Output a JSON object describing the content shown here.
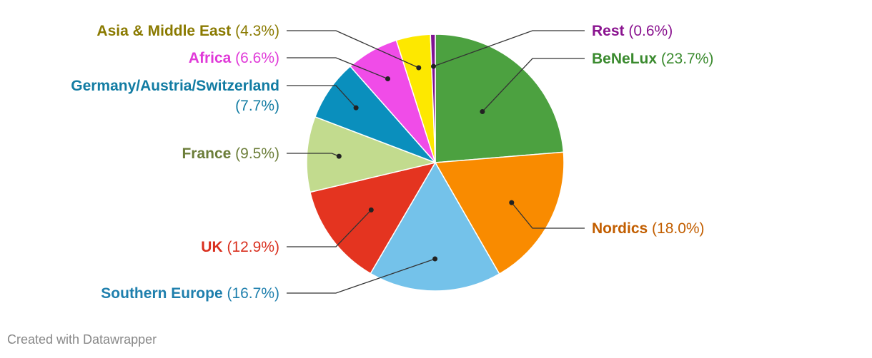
{
  "chart_data": {
    "type": "pie",
    "slices": [
      {
        "label": "BeNeLux",
        "value": 23.7,
        "display": "(23.7%)",
        "color": "#4ca140",
        "text_color": "#3a8a2e"
      },
      {
        "label": "Nordics",
        "value": 18.0,
        "display": "(18.0%)",
        "color": "#f98b00",
        "text_color": "#c25e00"
      },
      {
        "label": "Southern Europe",
        "value": 16.7,
        "display": "(16.7%)",
        "color": "#74c2ea",
        "text_color": "#1e7fad"
      },
      {
        "label": "UK",
        "value": 12.9,
        "display": "(12.9%)",
        "color": "#e43420",
        "text_color": "#d9301f"
      },
      {
        "label": "France",
        "value": 9.5,
        "display": "(9.5%)",
        "color": "#c2db8e",
        "text_color": "#6c7e3a"
      },
      {
        "label": "Germany/Austria/Switzerland",
        "value": 7.7,
        "display": "(7.7%)",
        "color": "#0a8fbd",
        "text_color": "#127ca3"
      },
      {
        "label": "Africa",
        "value": 6.6,
        "display": "(6.6%)",
        "color": "#f04ce8",
        "text_color": "#e03ad8"
      },
      {
        "label": "Asia & Middle East",
        "value": 4.3,
        "display": "(4.3%)",
        "color": "#fde800",
        "text_color": "#8a7a00"
      },
      {
        "label": "Rest",
        "value": 0.6,
        "display": "(0.6%)",
        "color": "#7e1392",
        "text_color": "#8a138f"
      }
    ]
  },
  "footer": "Created with Datawrapper"
}
